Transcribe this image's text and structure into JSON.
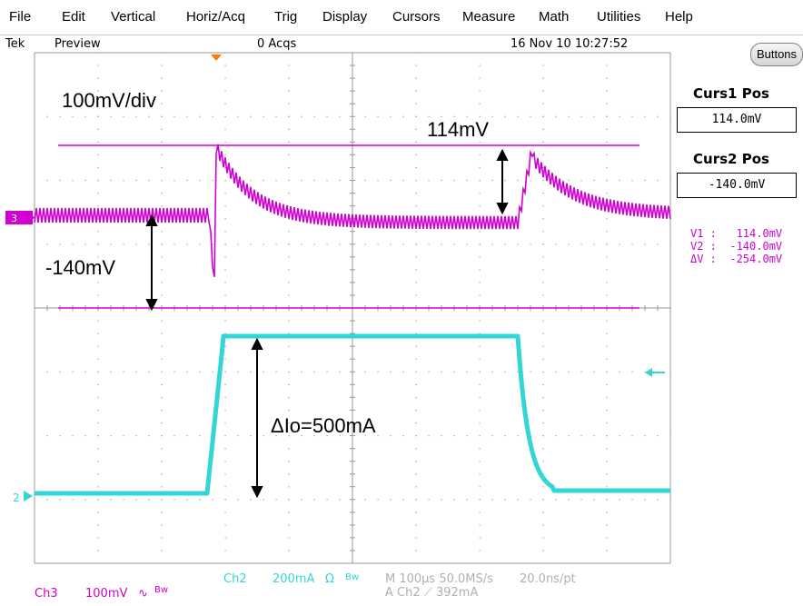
{
  "menu": [
    "File",
    "Edit",
    "Vertical",
    "Horiz/Acq",
    "Trig",
    "Display",
    "Cursors",
    "Measure",
    "Math",
    "Utilities",
    "Help"
  ],
  "status": {
    "brand": "Tek",
    "mode": "Preview",
    "acqs": "0 Acqs",
    "datetime": "16 Nov 10 10:27:52"
  },
  "side": {
    "buttons_label": "Buttons",
    "curs1_label": "Curs1 Pos",
    "curs1_value": "114.0mV",
    "curs2_label": "Curs2 Pos",
    "curs2_value": "-140.0mV",
    "readout_v1": "V1 :   114.0mV",
    "readout_v2": "V2 :  -140.0mV",
    "readout_dv": "ΔV :  -254.0mV"
  },
  "annotations": {
    "scale": "100mV/div",
    "v1": "114mV",
    "v2": "-140mV",
    "dio": "ΔIo=500mA"
  },
  "markers": {
    "ch3": "3",
    "ch2": "2"
  },
  "bottom": {
    "ch2_name": "Ch2",
    "ch2_scale": "200mA",
    "ch2_ohm": "Ω",
    "ch2_bw": "Bw",
    "horiz": "M 100µs 50.0MS/s",
    "rate": "20.0ns/pt",
    "trig": "A  Ch2  ⟋  392mA",
    "ch3_name": "Ch3",
    "ch3_scale": "100mV",
    "ch3_bw": "Bw"
  },
  "colors": {
    "ch3": "#d000d0",
    "ch2": "#33d6d6",
    "grid": "#9a9a9a",
    "trig_arrow": "#ff7a00"
  }
}
